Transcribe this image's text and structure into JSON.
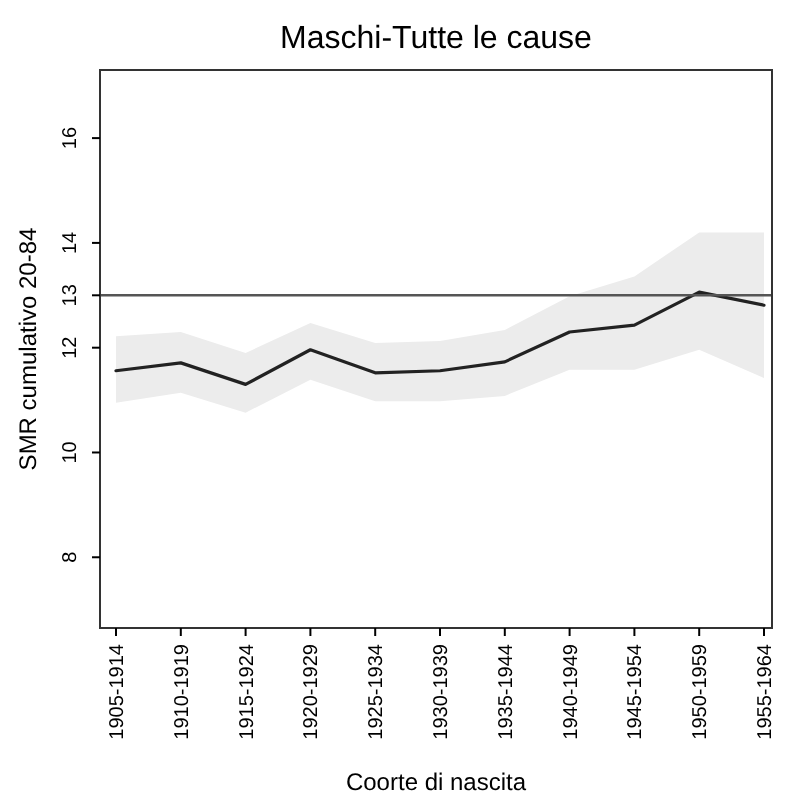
{
  "chart_data": {
    "type": "line",
    "title": "Maschi-Tutte le cause",
    "xlabel": "Coorte di nascita",
    "ylabel": "SMR cumulativo 20-84",
    "categories": [
      "1905-1914",
      "1910-1919",
      "1915-1924",
      "1920-1929",
      "1925-1934",
      "1930-1939",
      "1935-1944",
      "1940-1949",
      "1945-1954",
      "1950-1959",
      "1955-1964"
    ],
    "series": [
      {
        "color": "#222222",
        "values": [
          11.56,
          11.71,
          11.3,
          11.96,
          11.52,
          11.56,
          11.73,
          12.3,
          12.43,
          13.06,
          12.81
        ],
        "lower": [
          10.95,
          11.14,
          10.76,
          11.39,
          10.98,
          10.98,
          11.08,
          11.58,
          11.58,
          11.96,
          11.42
        ],
        "upper": [
          12.22,
          12.3,
          11.9,
          12.47,
          12.09,
          12.13,
          12.34,
          12.98,
          13.36,
          14.2,
          14.2
        ]
      }
    ],
    "ylim": [
      6.65,
      17.3
    ],
    "yticks": [
      8,
      10,
      12,
      13,
      14,
      16
    ],
    "ref_lines": [
      {
        "axis": "y",
        "value": 13,
        "color": "#555555"
      }
    ]
  }
}
